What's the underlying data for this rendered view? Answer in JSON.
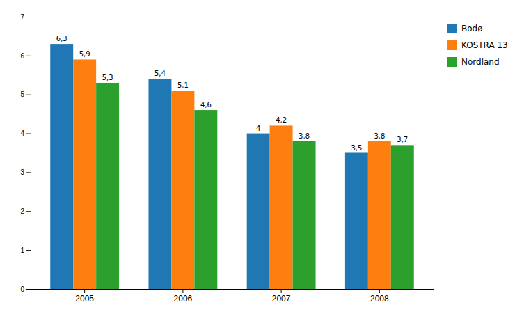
{
  "chart_data": {
    "type": "bar",
    "categories": [
      "2005",
      "2006",
      "2007",
      "2008"
    ],
    "series": [
      {
        "name": "Bodø",
        "values": [
          6.3,
          5.4,
          4.0,
          3.5
        ],
        "value_labels": [
          "6,3",
          "5,4",
          "4",
          "3,5"
        ]
      },
      {
        "name": "KOSTRA 13",
        "values": [
          5.9,
          5.1,
          4.2,
          3.8
        ],
        "value_labels": [
          "5,9",
          "5,1",
          "4,2",
          "3,8"
        ]
      },
      {
        "name": "Nordland",
        "values": [
          5.3,
          4.6,
          3.8,
          3.7
        ],
        "value_labels": [
          "5,3",
          "4,6",
          "3,8",
          "3,7"
        ]
      }
    ],
    "ylim": [
      0,
      7
    ],
    "yticks": [
      0,
      1,
      2,
      3,
      4,
      5,
      6,
      7
    ],
    "grid": false,
    "legend": "upper right",
    "data_labels": true
  }
}
